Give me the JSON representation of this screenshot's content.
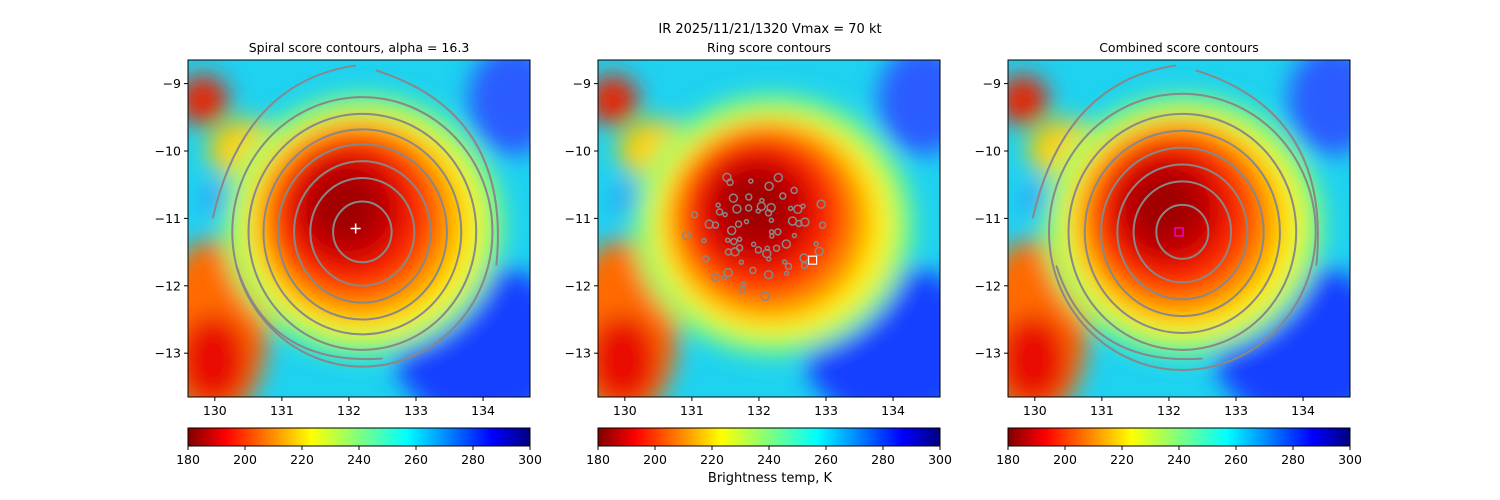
{
  "suptitle_line1": "IR  2025/11/21/1320    Vmax = 70 kt",
  "colorbar_label": "Brightness temp, K",
  "chart_data": [
    {
      "type": "heatmap",
      "title": "Spiral score contours, alpha = 16.3",
      "xlim": [
        129.6,
        134.7
      ],
      "ylim": [
        -13.65,
        -8.65
      ],
      "xticks": [
        130,
        131,
        132,
        133,
        134
      ],
      "yticks": [
        -9,
        -10,
        -11,
        -12,
        -13
      ],
      "colorbar": {
        "ticks": [
          180,
          200,
          220,
          240,
          260,
          280,
          300
        ],
        "range": [
          180,
          300
        ],
        "colormap": "jet_r"
      },
      "contour_center": [
        132.2,
        -11.2
      ],
      "contour_radii_deg": [
        0.45,
        0.8,
        1.05,
        1.3,
        1.52,
        1.75,
        2.0
      ],
      "marker": {
        "type": "cross",
        "lon": 132.1,
        "lat": -11.15,
        "color": "#ffffff"
      }
    },
    {
      "type": "heatmap",
      "title": "Ring score contours",
      "xlim": [
        129.6,
        134.7
      ],
      "ylim": [
        -13.65,
        -8.65
      ],
      "xticks": [
        130,
        131,
        132,
        133,
        134
      ],
      "yticks": [
        -9,
        -10,
        -11,
        -12,
        -13
      ],
      "colorbar": {
        "ticks": [
          180,
          200,
          220,
          240,
          260,
          280,
          300
        ],
        "range": [
          180,
          300
        ],
        "colormap": "jet_r"
      },
      "marker": {
        "type": "square",
        "lon": 132.8,
        "lat": -11.62,
        "color": "#ffffff"
      }
    },
    {
      "type": "heatmap",
      "title": "Combined score contours",
      "xlim": [
        129.6,
        134.7
      ],
      "ylim": [
        -13.65,
        -8.65
      ],
      "xticks": [
        130,
        131,
        132,
        133,
        134
      ],
      "yticks": [
        -9,
        -10,
        -11,
        -12,
        -13
      ],
      "colorbar": {
        "ticks": [
          180,
          200,
          220,
          240,
          260,
          280,
          300
        ],
        "range": [
          180,
          300
        ],
        "colormap": "jet_r"
      },
      "contour_center": [
        132.2,
        -11.2
      ],
      "contour_radii_deg": [
        0.4,
        0.75,
        1.0,
        1.25,
        1.5,
        1.75,
        2.05
      ],
      "marker": {
        "type": "square",
        "lon": 132.15,
        "lat": -11.2,
        "color": "#ff00ff"
      }
    }
  ]
}
